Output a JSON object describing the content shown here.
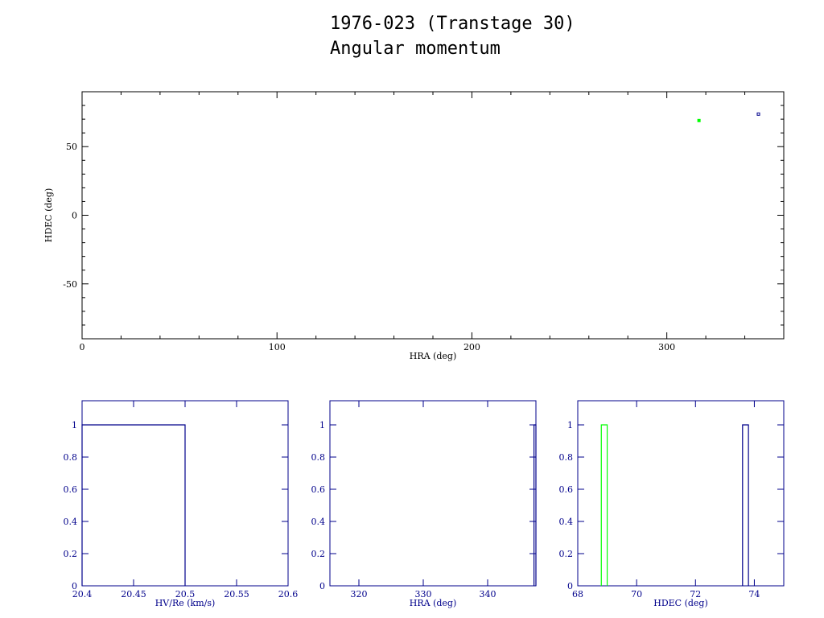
{
  "title": "1976-023 (Transtage 30)",
  "subtitle": "Angular momentum",
  "colors": {
    "axes_main": "#000000",
    "axes_hist": "#00008b",
    "series_a": "#00ff00",
    "series_b": "#00008b"
  },
  "chart_data": [
    {
      "type": "scatter",
      "xlabel": "HRA (deg)",
      "ylabel": "HDEC (deg)",
      "xlim": [
        0,
        360
      ],
      "ylim": [
        -90,
        90
      ],
      "xticks": [
        "0",
        "100",
        "200",
        "300"
      ],
      "yticks": [
        "-50",
        "0",
        "50"
      ],
      "grid": false,
      "series": [
        {
          "color": "#00ff00",
          "points": [
            [
              316.5,
              69.0
            ]
          ]
        },
        {
          "color": "#00008b",
          "points": [
            [
              347.0,
              73.7
            ]
          ]
        }
      ]
    },
    {
      "type": "histogram",
      "xlabel": "HV/Re (km/s)",
      "xlim": [
        20.4,
        20.6
      ],
      "ylim": [
        0,
        1.15
      ],
      "xticks": [
        "20.4",
        "20.45",
        "20.5",
        "20.55",
        "20.6"
      ],
      "yticks": [
        "0",
        "0.2",
        "0.4",
        "0.6",
        "0.8",
        "1"
      ],
      "series": [
        {
          "color": "#00008b",
          "bins": [
            {
              "x0": 20.4,
              "x1": 20.5,
              "count": 1
            }
          ]
        }
      ]
    },
    {
      "type": "histogram",
      "xlabel": "HRA (deg)",
      "xlim": [
        315.5,
        347.5
      ],
      "ylim": [
        0,
        1.15
      ],
      "xticks": [
        "320",
        "330",
        "340"
      ],
      "yticks": [
        "0",
        "0.2",
        "0.4",
        "0.6",
        "0.8",
        "1"
      ],
      "series": [
        {
          "color": "#00008b",
          "bins": [
            {
              "x0": 347.2,
              "x1": 347.5,
              "count": 1
            }
          ]
        }
      ]
    },
    {
      "type": "histogram",
      "xlabel": "HDEC (deg)",
      "xlim": [
        68,
        75
      ],
      "ylim": [
        0,
        1.15
      ],
      "xticks": [
        "68",
        "70",
        "72",
        "74"
      ],
      "yticks": [
        "0",
        "0.2",
        "0.4",
        "0.6",
        "0.8",
        "1"
      ],
      "series": [
        {
          "color": "#00ff00",
          "bins": [
            {
              "x0": 68.8,
              "x1": 69.0,
              "count": 1
            }
          ]
        },
        {
          "color": "#00008b",
          "bins": [
            {
              "x0": 73.6,
              "x1": 73.8,
              "count": 1
            }
          ]
        }
      ]
    }
  ]
}
